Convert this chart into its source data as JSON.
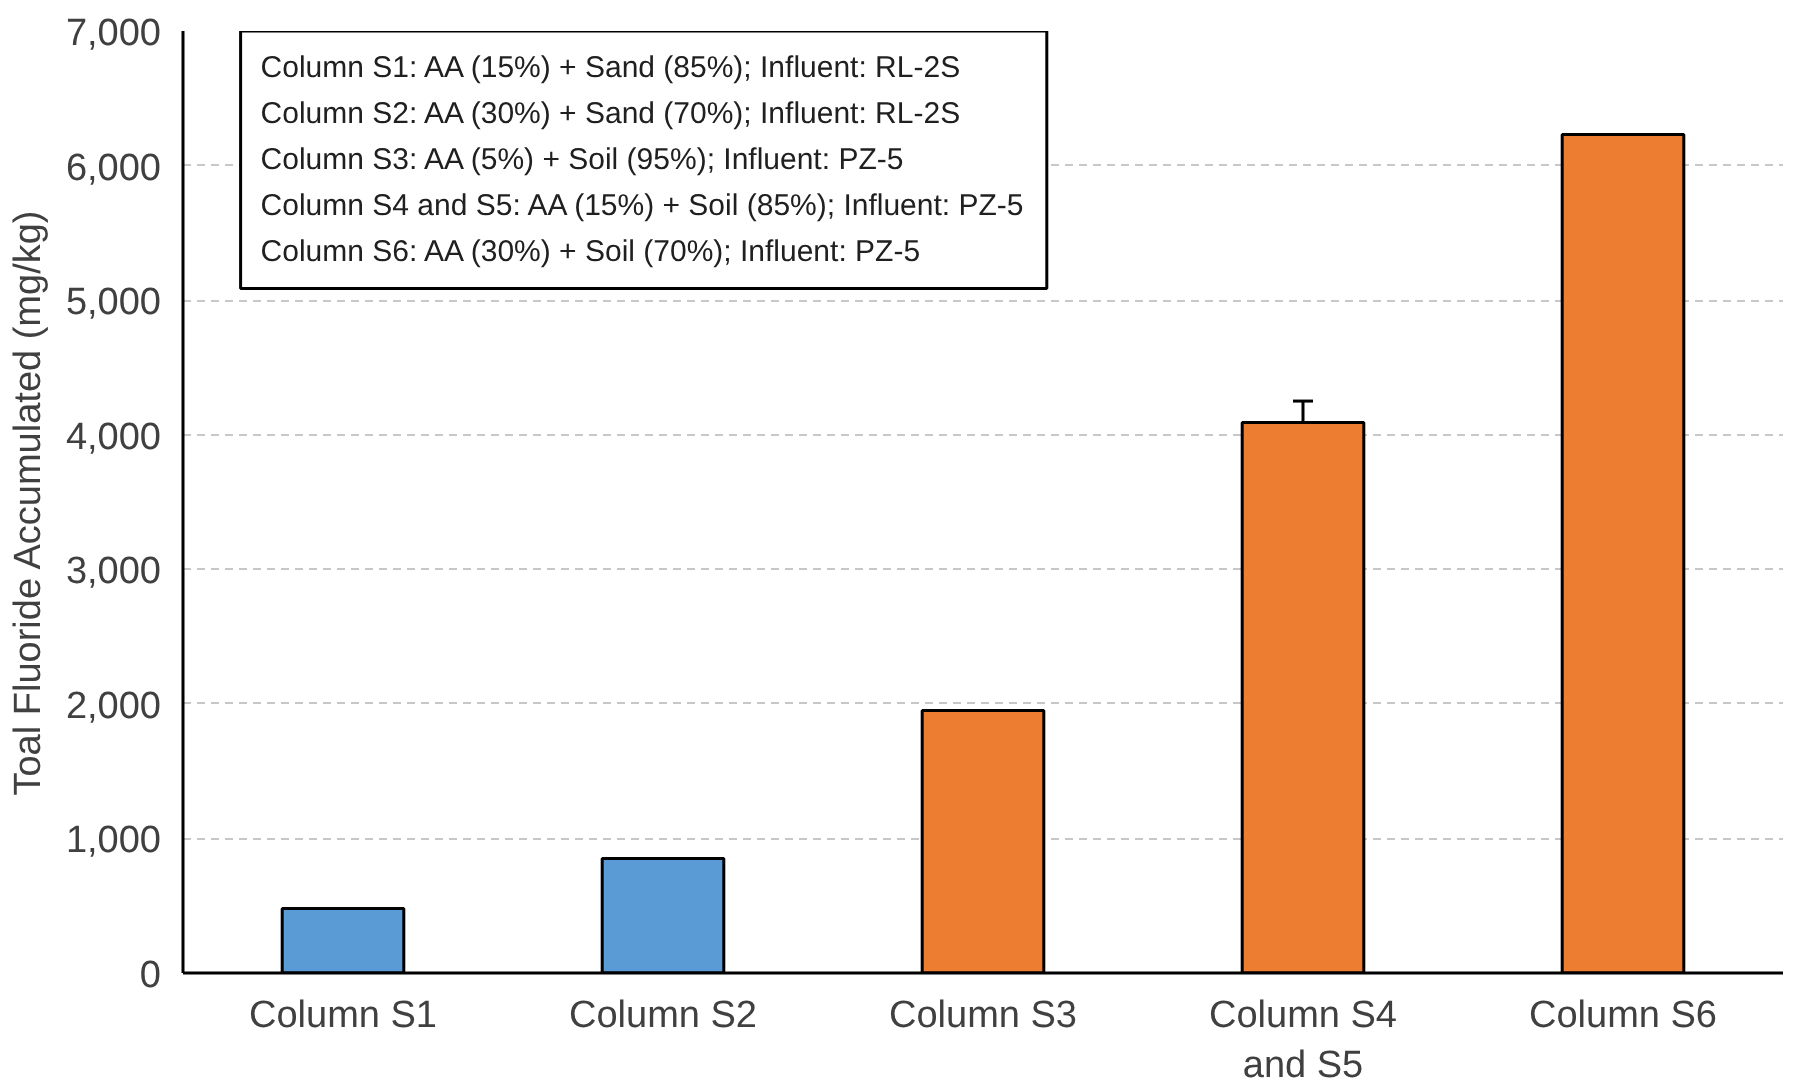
{
  "chart_data": {
    "type": "bar",
    "ylabel": "Toal Fluoride Accumulated (mg/kg)",
    "categories": [
      "Column S1",
      "Column S2",
      "Column S3",
      "Column S4\nand S5",
      "Column S6"
    ],
    "values": [
      480,
      850,
      1950,
      4090,
      6230
    ],
    "colors": [
      "#5b9bd5",
      "#5b9bd5",
      "#ed7d31",
      "#ed7d31",
      "#ed7d31"
    ],
    "errors": [
      null,
      null,
      null,
      160,
      null
    ],
    "ylim": [
      0,
      7000
    ],
    "yticks": [
      {
        "value": 0,
        "label": "0"
      },
      {
        "value": 1000,
        "label": "1,000"
      },
      {
        "value": 2000,
        "label": "2,000"
      },
      {
        "value": 3000,
        "label": "3,000"
      },
      {
        "value": 4000,
        "label": "4,000"
      },
      {
        "value": 5000,
        "label": "5,000"
      },
      {
        "value": 6000,
        "label": "6,000"
      },
      {
        "value": 7000,
        "label": "7,000"
      }
    ],
    "grid": "y",
    "annotations": [
      "Column S1: AA (15%) + Sand (85%); Influent: RL-2S",
      "Column S2: AA (30%) + Sand (70%); Influent: RL-2S",
      "Column S3: AA (5%) + Soil (95%); Influent: PZ-5",
      "Column S4 and S5: AA (15%) + Soil (85%); Influent: PZ-5",
      "Column S6: AA (30%) + Soil (70%); Influent: PZ-5"
    ]
  }
}
